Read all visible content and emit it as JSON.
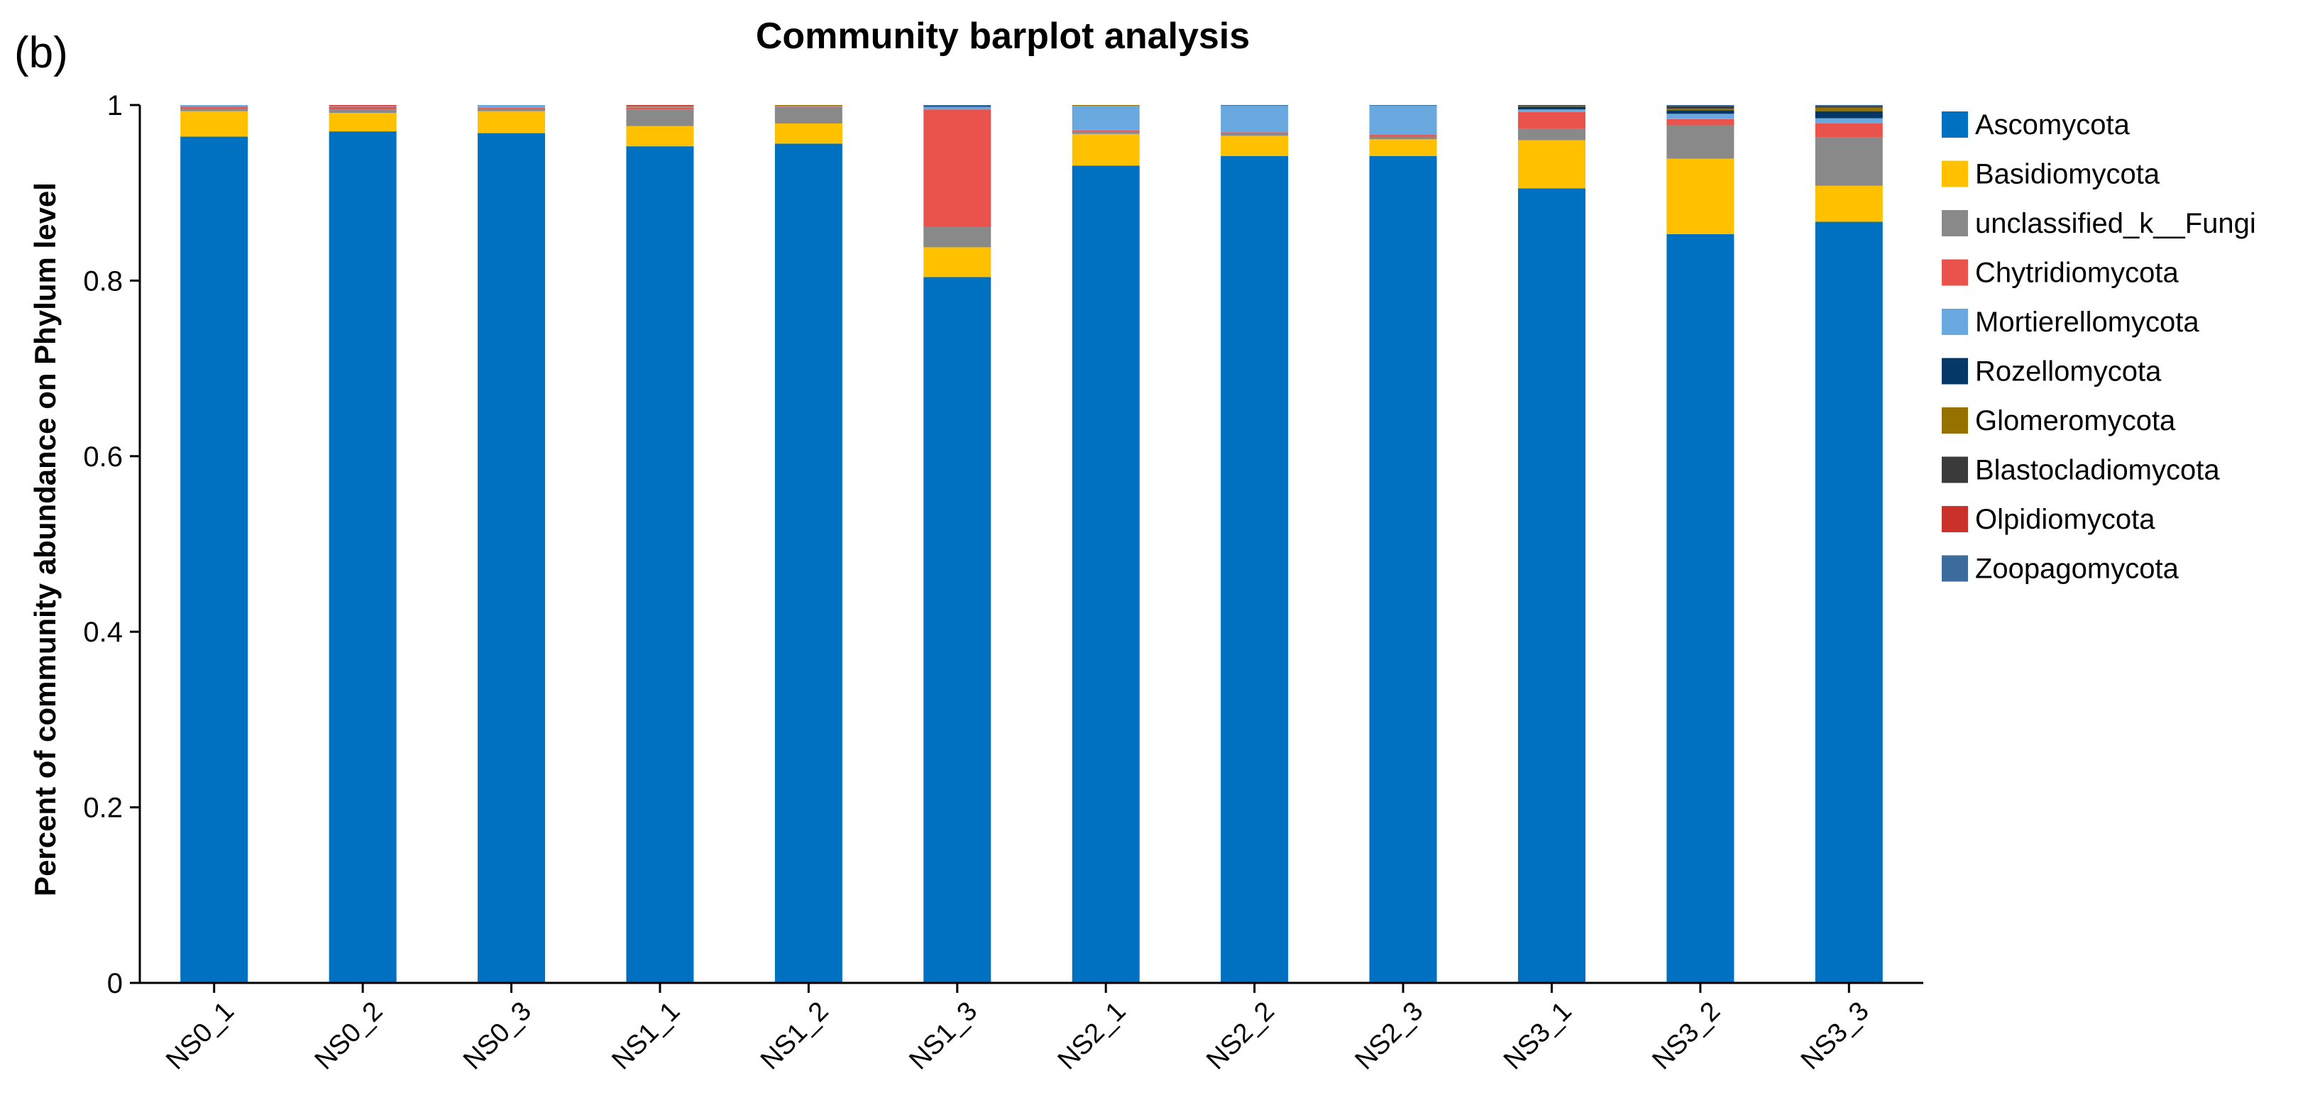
{
  "panel_label": "(b)",
  "chart_data": {
    "type": "bar",
    "stacked": true,
    "title": "Community barplot analysis",
    "xlabel": "",
    "ylabel": "Percent of community abundance on Phylum level",
    "ylim": [
      0,
      1
    ],
    "yticks": [
      0,
      0.2,
      0.4,
      0.6,
      0.8,
      1
    ],
    "ytick_labels": [
      "0",
      "0.2",
      "0.4",
      "0.6",
      "0.8",
      "1"
    ],
    "grid": false,
    "legend_position": "right",
    "categories": [
      "NS0_1",
      "NS0_2",
      "NS0_3",
      "NS1_1",
      "NS1_2",
      "NS1_3",
      "NS2_1",
      "NS2_2",
      "NS2_3",
      "NS3_1",
      "NS3_2",
      "NS3_3"
    ],
    "series": [
      {
        "name": "Ascomycota",
        "color": "#0070c0",
        "values": [
          0.964,
          0.97,
          0.968,
          0.953,
          0.956,
          0.804,
          0.931,
          0.942,
          0.942,
          0.905,
          0.853,
          0.867
        ]
      },
      {
        "name": "Basidiomycota",
        "color": "#ffc000",
        "values": [
          0.029,
          0.021,
          0.025,
          0.023,
          0.023,
          0.034,
          0.036,
          0.023,
          0.019,
          0.055,
          0.086,
          0.041
        ]
      },
      {
        "name": "unclassified_k__Fungi",
        "color": "#898989",
        "values": [
          0.003,
          0.004,
          0.003,
          0.019,
          0.018,
          0.023,
          0.003,
          0.003,
          0.003,
          0.013,
          0.038,
          0.055
        ]
      },
      {
        "name": "Chytridiomycota",
        "color": "#ea534b",
        "values": [
          0.002,
          0.003,
          0.001,
          0.002,
          0.001,
          0.134,
          0.001,
          0.001,
          0.002,
          0.019,
          0.007,
          0.016
        ]
      },
      {
        "name": "Mortierellomycota",
        "color": "#6aa9e0",
        "values": [
          0.002,
          0.001,
          0.003,
          0.001,
          0.001,
          0.003,
          0.028,
          0.03,
          0.033,
          0.003,
          0.006,
          0.006
        ]
      },
      {
        "name": "Rozellomycota",
        "color": "#053866",
        "values": [
          0.0,
          0.0,
          0.0,
          0.0,
          0.0,
          0.001,
          0.0,
          0.0,
          0.0,
          0.003,
          0.004,
          0.008
        ]
      },
      {
        "name": "Glomeromycota",
        "color": "#957200",
        "values": [
          0.0,
          0.0,
          0.0,
          0.001,
          0.001,
          0.0,
          0.001,
          0.0,
          0.0,
          0.001,
          0.002,
          0.004
        ]
      },
      {
        "name": "Blastocladiomycota",
        "color": "#3a3a3a",
        "values": [
          0.0,
          0.0,
          0.0,
          0.0,
          0.0,
          0.0,
          0.0,
          0.0,
          0.0,
          0.001,
          0.003,
          0.002
        ]
      },
      {
        "name": "Olpidiomycota",
        "color": "#c9312a",
        "values": [
          0.0,
          0.001,
          0.0,
          0.001,
          0.0,
          0.0,
          0.0,
          0.0,
          0.0,
          0.0,
          0.0,
          0.0
        ]
      },
      {
        "name": "Zoopagomycota",
        "color": "#3c6b9e",
        "values": [
          0.0,
          0.0,
          0.0,
          0.0,
          0.0,
          0.001,
          0.0,
          0.001,
          0.001,
          0.0,
          0.001,
          0.001
        ]
      }
    ]
  }
}
